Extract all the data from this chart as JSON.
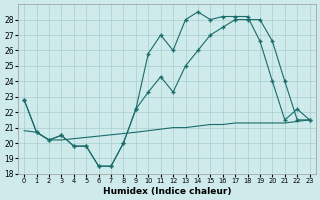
{
  "xlabel": "Humidex (Indice chaleur)",
  "background_color": "#ceeaea",
  "grid_color": "#aacece",
  "line_color": "#1a6b6b",
  "x_ticks": [
    0,
    1,
    2,
    3,
    4,
    5,
    6,
    7,
    8,
    9,
    10,
    11,
    12,
    13,
    14,
    15,
    16,
    17,
    18,
    19,
    20,
    21,
    22,
    23
  ],
  "ylim": [
    18,
    29
  ],
  "y_ticks": [
    18,
    19,
    20,
    21,
    22,
    23,
    24,
    25,
    26,
    27,
    28
  ],
  "line1_x": [
    0,
    1,
    2,
    3,
    4,
    5,
    6,
    7,
    8,
    9,
    10,
    11,
    12,
    13,
    14,
    15,
    16,
    17,
    18,
    19,
    20,
    21,
    22,
    23
  ],
  "line1_y": [
    22.8,
    20.7,
    20.2,
    20.5,
    19.8,
    19.8,
    18.5,
    18.5,
    20.0,
    22.2,
    25.8,
    27.0,
    26.0,
    28.0,
    28.5,
    28.0,
    28.2,
    28.2,
    28.2,
    26.6,
    24.0,
    21.5,
    22.2,
    21.5
  ],
  "line2_x": [
    0,
    1,
    2,
    3,
    4,
    5,
    6,
    7,
    8,
    9,
    10,
    11,
    12,
    13,
    14,
    15,
    16,
    17,
    18,
    19,
    20,
    21,
    22,
    23
  ],
  "line2_y": [
    22.8,
    20.7,
    20.2,
    20.5,
    19.8,
    19.8,
    18.5,
    18.5,
    20.0,
    22.2,
    23.3,
    24.3,
    23.3,
    25.0,
    26.0,
    27.0,
    27.5,
    28.0,
    28.0,
    28.0,
    26.6,
    24.0,
    21.5,
    21.5
  ],
  "line3_x": [
    0,
    1,
    2,
    3,
    9,
    10,
    11,
    12,
    13,
    14,
    15,
    16,
    17,
    18,
    19,
    20,
    21,
    22,
    23
  ],
  "line3_y": [
    20.8,
    20.7,
    20.2,
    20.2,
    20.7,
    20.8,
    20.9,
    21.0,
    21.0,
    21.1,
    21.2,
    21.2,
    21.3,
    21.3,
    21.3,
    21.3,
    21.3,
    21.4,
    21.5
  ]
}
